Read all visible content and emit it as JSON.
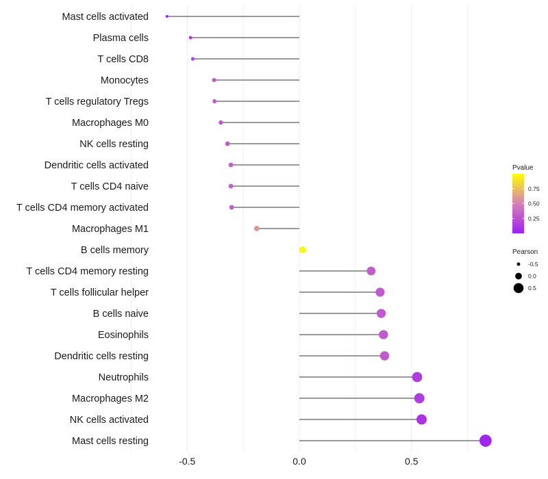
{
  "chart_data": {
    "type": "lollipop",
    "title": "",
    "xlabel": "",
    "ylabel": "",
    "xlim": [
      -0.6,
      0.85
    ],
    "x_ticks": [
      -0.5,
      0.0,
      0.5
    ],
    "x_tick_labels": [
      "-0.5",
      "0.0",
      "0.5"
    ],
    "grid": true,
    "categories": [
      "Mast cells activated",
      "Plasma cells",
      "T cells CD8",
      "Monocytes",
      "T cells regulatory  Tregs ",
      "Macrophages M0",
      "NK cells resting",
      "Dendritic cells activated",
      "T cells CD4 naive",
      "T cells CD4 memory activated",
      "Macrophages M1",
      "B cells memory",
      "T cells CD4 memory resting",
      "T cells follicular helper",
      "B cells naive",
      "Eosinophils",
      "Dendritic cells resting",
      "Neutrophils",
      "Macrophages M2",
      "NK cells activated",
      "Mast cells resting"
    ],
    "values": [
      -0.59,
      -0.485,
      -0.475,
      -0.38,
      -0.378,
      -0.35,
      -0.32,
      -0.305,
      -0.305,
      -0.302,
      -0.19,
      0.015,
      0.32,
      0.36,
      0.365,
      0.375,
      0.38,
      0.525,
      0.535,
      0.545,
      0.83
    ],
    "pvalues": [
      0.02,
      0.15,
      0.15,
      0.3,
      0.3,
      0.3,
      0.3,
      0.32,
      0.32,
      0.32,
      0.6,
      0.97,
      0.32,
      0.3,
      0.3,
      0.3,
      0.3,
      0.15,
      0.15,
      0.1,
      0.02
    ],
    "legend": {
      "color_title": "Pvalue",
      "color_ticks": [
        0.75,
        0.5,
        0.25
      ],
      "color_tick_labels": [
        "0.75",
        "0.50",
        "0.25"
      ],
      "color_range": [
        0.0,
        1.0
      ],
      "color_low": "#a020f0",
      "color_mid": "#d580b8",
      "color_high": "#ffff00",
      "size_title": "Pearson",
      "size_values": [
        -0.5,
        0.0,
        0.5
      ],
      "size_labels": [
        "-0.5",
        "0.0",
        "0.5"
      ],
      "size_color": "#000000",
      "position": "right"
    },
    "line_color": "#333333",
    "grid_color": "#ebebeb"
  }
}
